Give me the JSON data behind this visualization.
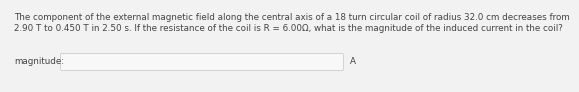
{
  "line1": "The component of the external magnetic field along the central axis of a 18 turn circular coil of radius 32.0 cm decreases from",
  "line2": "2.90 T to 0.450 T in 2.50 s. If the resistance of the coil is R = 6.00Ω, what is the magnitude of the induced current in the coil?",
  "label": "magnitude:",
  "unit": "A",
  "bg_color": "#f2f2f2",
  "text_color": "#444444",
  "box_facecolor": "#f8f8f8",
  "box_edgecolor": "#cccccc",
  "font_size": 6.3,
  "label_font_size": 6.3,
  "unit_font_size": 6.3
}
